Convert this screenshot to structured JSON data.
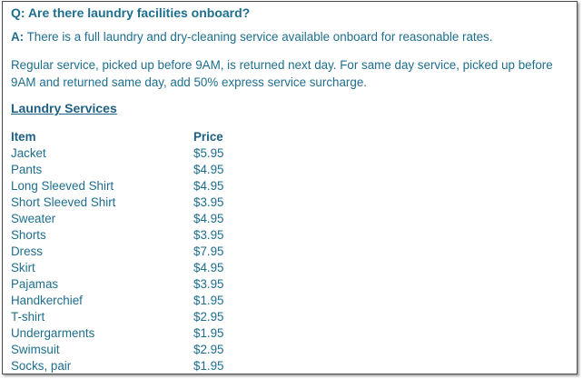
{
  "faq": {
    "question_prefix": "Q:",
    "question": "Are there laundry facilities onboard?",
    "answer_prefix": "A:",
    "answer": "There is a full laundry and dry-cleaning service available onboard for reasonable rates.",
    "paragraph": "Regular service, picked up before 9AM, is returned next day. For same day service, picked up before 9AM and returned same day, add 50% express service surcharge."
  },
  "laundry": {
    "title": "Laundry Services",
    "headers": {
      "item": "Item",
      "price": "Price"
    },
    "rows": [
      {
        "item": "Jacket",
        "price": "$5.95"
      },
      {
        "item": "Pants",
        "price": "$4.95"
      },
      {
        "item": "Long Sleeved Shirt",
        "price": "$4.95"
      },
      {
        "item": "Short Sleeved Shirt",
        "price": "$3.95"
      },
      {
        "item": "Sweater",
        "price": "$4.95"
      },
      {
        "item": "Shorts",
        "price": "$3.95"
      },
      {
        "item": "Dress",
        "price": "$7.95"
      },
      {
        "item": "Skirt",
        "price": "$4.95"
      },
      {
        "item": "Pajamas",
        "price": "$3.95"
      },
      {
        "item": "Handkerchief",
        "price": "$1.95"
      },
      {
        "item": "T-shirt",
        "price": "$2.95"
      },
      {
        "item": "Undergarments",
        "price": "$1.95"
      },
      {
        "item": "Swimsuit",
        "price": "$2.95"
      },
      {
        "item": "Socks, pair",
        "price": "$1.95"
      }
    ]
  },
  "colors": {
    "text": "#1e6e8e",
    "heading": "#1e5f84",
    "border": "#4a4a4a"
  }
}
